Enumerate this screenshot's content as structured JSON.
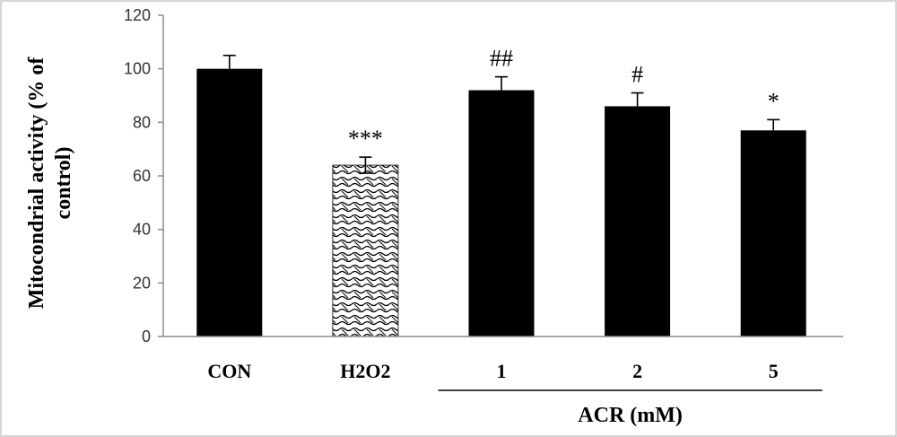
{
  "chart_data": {
    "type": "bar",
    "title": "",
    "ylabel_lines": [
      "Mitocondrial activity (% of",
      "control)"
    ],
    "xlabel": "",
    "categories": [
      "CON",
      "H2O2",
      "1",
      "2",
      "5"
    ],
    "values": [
      100,
      64,
      92,
      86,
      77
    ],
    "errors": [
      5,
      3,
      5,
      5,
      4
    ],
    "significance": [
      "",
      "***",
      "##",
      "#",
      "*"
    ],
    "fill": [
      "solid",
      "pattern",
      "solid",
      "solid",
      "solid"
    ],
    "ylim": [
      0,
      120
    ],
    "yticks": [
      0,
      20,
      40,
      60,
      80,
      100,
      120
    ],
    "group_label": {
      "text": "ACR (mM)",
      "spans": [
        "1",
        "2",
        "5"
      ]
    },
    "grid": false,
    "legend": "none",
    "colors": {
      "bar": "#000000",
      "pattern_bg": "#ffffff",
      "pattern_fg": "#000000",
      "axis": "#8c8c8c",
      "border": "#c8c8c8"
    }
  }
}
